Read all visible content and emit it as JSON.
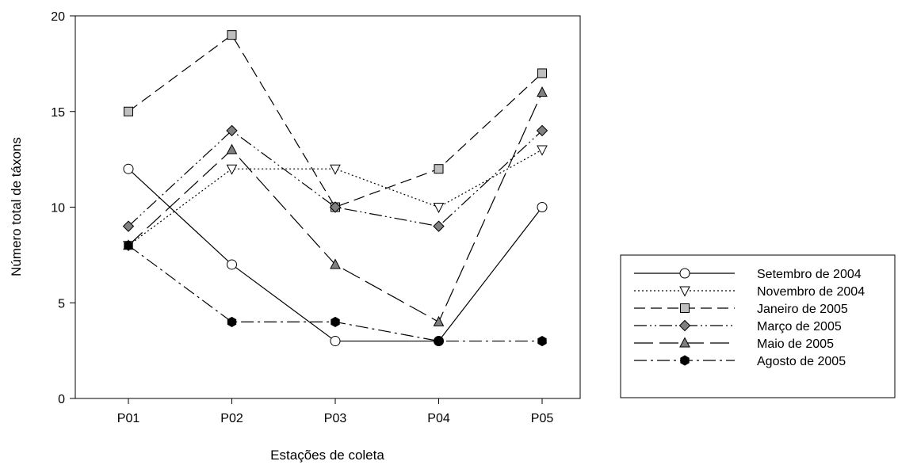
{
  "chart_data": {
    "type": "line",
    "xlabel": "Estações de coleta",
    "ylabel": "Número total de táxons",
    "categories": [
      "P01",
      "P02",
      "P03",
      "P04",
      "P05"
    ],
    "ylim": [
      0,
      20
    ],
    "yticks": [
      0,
      5,
      10,
      15,
      20
    ],
    "grid": false,
    "legend_position": "right",
    "series": [
      {
        "name": "Setembro de 2004",
        "values": [
          12,
          7,
          3,
          3,
          10
        ],
        "marker": "circle",
        "marker_fill": "#ffffff",
        "dash": "solid"
      },
      {
        "name": "Novembro de 2004",
        "values": [
          8,
          12,
          12,
          10,
          13
        ],
        "marker": "triangle-down",
        "marker_fill": "#ffffff",
        "dash": "dotted"
      },
      {
        "name": "Janeiro de 2005",
        "values": [
          15,
          19,
          10,
          12,
          17
        ],
        "marker": "square",
        "marker_fill": "#bfbfbf",
        "dash": "dashed"
      },
      {
        "name": "Março de 2005",
        "values": [
          9,
          14,
          10,
          9,
          14
        ],
        "marker": "diamond",
        "marker_fill": "#808080",
        "dash": "dash-dot-dot"
      },
      {
        "name": "Maio de 2005",
        "values": [
          8,
          13,
          7,
          4,
          16
        ],
        "marker": "triangle-up",
        "marker_fill": "#808080",
        "dash": "long-dash"
      },
      {
        "name": "Agosto de 2005",
        "values": [
          8,
          4,
          4,
          3,
          3
        ],
        "marker": "hexagon",
        "marker_fill": "#000000",
        "dash": "dash-dot"
      }
    ]
  }
}
